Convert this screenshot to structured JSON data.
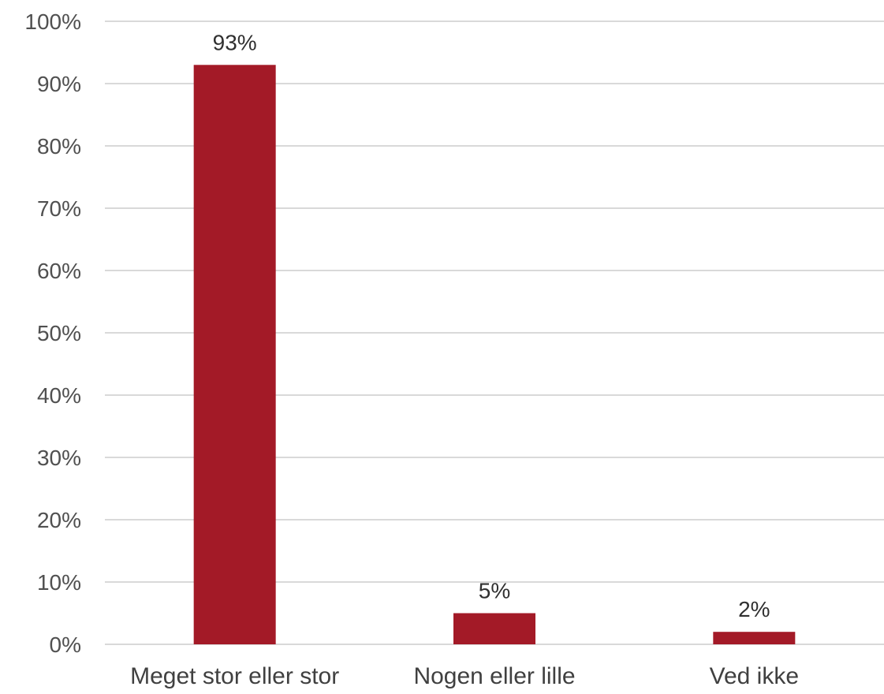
{
  "chart_data": {
    "type": "bar",
    "title": "",
    "xlabel": "",
    "ylabel": "",
    "categories": [
      "Meget stor eller stor",
      "Nogen eller lille",
      "Ved ikke"
    ],
    "values": [
      93,
      5,
      2
    ],
    "value_labels": [
      "93%",
      "5%",
      "2%"
    ],
    "ylim": [
      0,
      100
    ],
    "yticks": [
      0,
      10,
      20,
      30,
      40,
      50,
      60,
      70,
      80,
      90,
      100
    ],
    "ytick_labels": [
      "0%",
      "10%",
      "20%",
      "30%",
      "40%",
      "50%",
      "60%",
      "70%",
      "80%",
      "90%",
      "100%"
    ],
    "grid": true,
    "legend": "none",
    "bar_color": "#A31A27",
    "grid_color": "#D9D9D9"
  }
}
